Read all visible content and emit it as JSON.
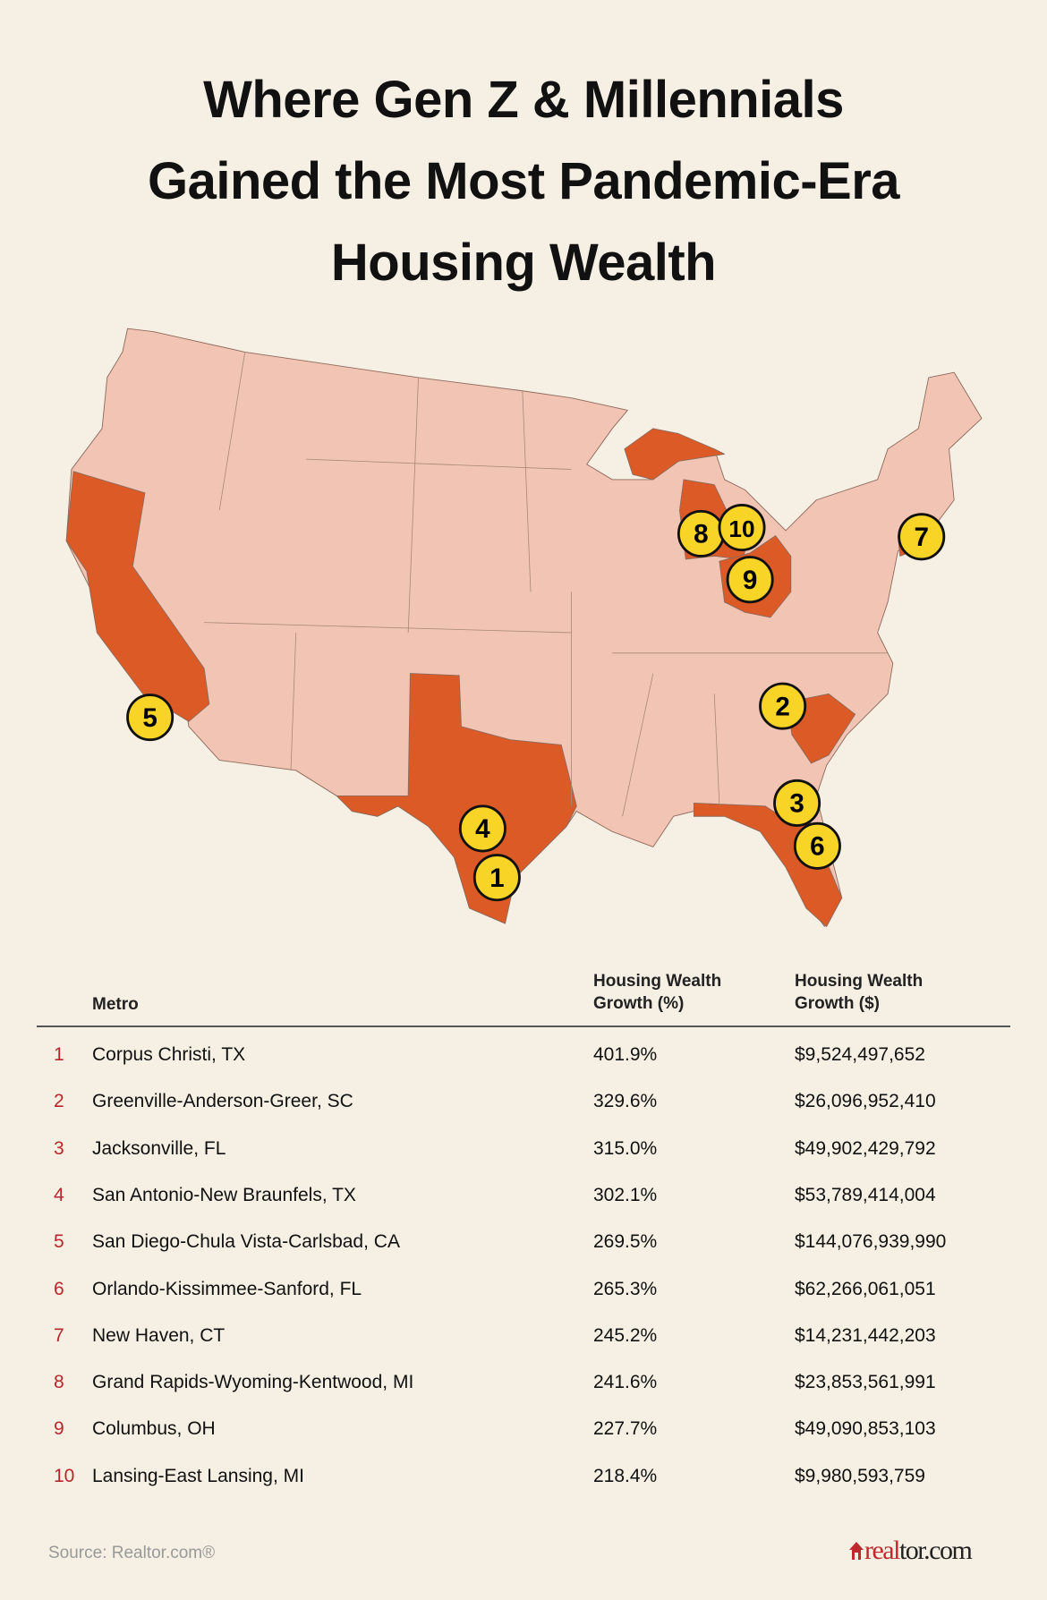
{
  "title_lines": [
    "Where Gen Z & Millennials",
    "Gained the Most Pandemic-Era",
    "Housing Wealth"
  ],
  "colors": {
    "background": "#f6efe3",
    "state_default": "#f2c4b3",
    "state_highlight": "#dc5a26",
    "marker": "#f7d426",
    "rank_text": "#b8272b"
  },
  "chart_data": {
    "type": "table",
    "highlighted_states": [
      "CA",
      "TX",
      "MI",
      "OH",
      "SC",
      "FL",
      "CT"
    ],
    "columns": [
      "",
      "Metro",
      "Housing Wealth Growth (%)",
      "Housing Wealth Growth ($)"
    ],
    "rows": [
      {
        "rank": "1",
        "metro": "Corpus Christi, TX",
        "pct": "401.9%",
        "usd": "$9,524,497,652"
      },
      {
        "rank": "2",
        "metro": "Greenville-Anderson-Greer, SC",
        "pct": "329.6%",
        "usd": "$26,096,952,410"
      },
      {
        "rank": "3",
        "metro": "Jacksonville, FL",
        "pct": "315.0%",
        "usd": "$49,902,429,792"
      },
      {
        "rank": "4",
        "metro": "San Antonio-New Braunfels, TX",
        "pct": "302.1%",
        "usd": "$53,789,414,004"
      },
      {
        "rank": "5",
        "metro": "San Diego-Chula Vista-Carlsbad, CA",
        "pct": "269.5%",
        "usd": "$144,076,939,990"
      },
      {
        "rank": "6",
        "metro": "Orlando-Kissimmee-Sanford, FL",
        "pct": "265.3%",
        "usd": "$62,266,061,051"
      },
      {
        "rank": "7",
        "metro": "New Haven, CT",
        "pct": "245.2%",
        "usd": "$14,231,442,203"
      },
      {
        "rank": "8",
        "metro": "Grand Rapids-Wyoming-Kentwood, MI",
        "pct": "241.6%",
        "usd": "$23,853,561,991"
      },
      {
        "rank": "9",
        "metro": "Columbus, OH",
        "pct": "227.7%",
        "usd": "$49,090,853,103"
      },
      {
        "rank": "10",
        "metro": "Lansing-East Lansing, MI",
        "pct": "218.4%",
        "usd": "$9,980,593,759"
      }
    ]
  },
  "table": {
    "header_metro": "Metro",
    "header_pct_1": "Housing Wealth",
    "header_pct_2": "Growth (%)",
    "header_usd_1": "Housing Wealth",
    "header_usd_2": "Growth ($)"
  },
  "footer": {
    "source": "Source: Realtor.com®",
    "logo_red": "real",
    "logo_dark": "tor.com",
    "logo_icon": "house-icon"
  }
}
